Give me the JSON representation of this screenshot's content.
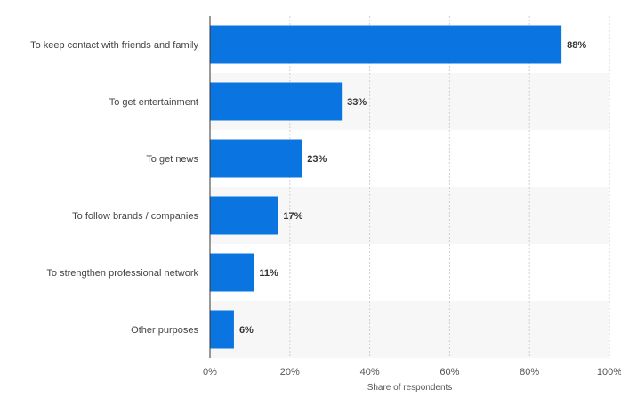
{
  "chart_data": {
    "type": "bar",
    "orientation": "horizontal",
    "categories": [
      "To keep contact with friends and family",
      "To get entertainment",
      "To get news",
      "To follow brands / companies",
      "To strengthen professional network",
      "Other purposes"
    ],
    "values": [
      88,
      33,
      23,
      17,
      11,
      6
    ],
    "value_labels": [
      "88%",
      "33%",
      "23%",
      "17%",
      "11%",
      "6%"
    ],
    "xlabel": "Share of respondents",
    "ylabel": "",
    "xlim": [
      0,
      100
    ],
    "xticks": [
      0,
      20,
      40,
      60,
      80,
      100
    ],
    "xtick_labels": [
      "0%",
      "20%",
      "40%",
      "60%",
      "80%",
      "100%"
    ],
    "grid": true,
    "bar_color": "#0a74e0"
  }
}
